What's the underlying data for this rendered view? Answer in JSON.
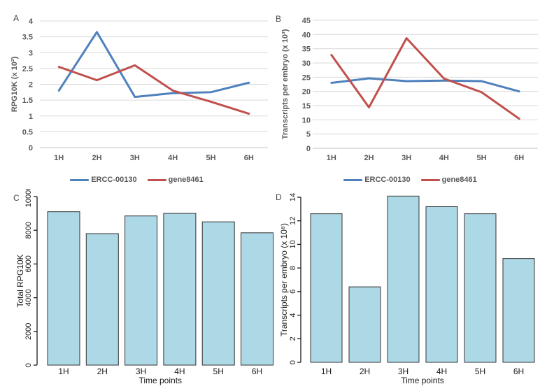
{
  "chart_data": [
    {
      "panel": "A",
      "type": "line",
      "x_categories": [
        "1H",
        "2H",
        "3H",
        "4H",
        "5H",
        "6H"
      ],
      "series": [
        {
          "name": "ERCC-00130",
          "color": "#4F81BD",
          "values": [
            1.8,
            3.65,
            1.6,
            1.72,
            1.75,
            2.05
          ]
        },
        {
          "name": "gene8461",
          "color": "#C0504D",
          "values": [
            2.55,
            2.13,
            2.6,
            1.8,
            1.45,
            1.07
          ]
        }
      ],
      "ylabel": "RPG10K (x 10²)",
      "xlabel": "",
      "ylim": [
        0,
        4
      ],
      "ytick_step": 0.5,
      "grid": true,
      "legend_position": "bottom",
      "gridline_color": "#d9d9d9",
      "axis_line_color": "#c3c3c3",
      "tick_text_color": "#595959"
    },
    {
      "panel": "B",
      "type": "line",
      "x_categories": [
        "1H",
        "2H",
        "3H",
        "4H",
        "5H",
        "6H"
      ],
      "series": [
        {
          "name": "ERCC-00130",
          "color": "#4F81BD",
          "values": [
            23,
            24.6,
            23.6,
            23.8,
            23.6,
            20
          ]
        },
        {
          "name": "gene8461",
          "color": "#C0504D",
          "values": [
            32.8,
            14.4,
            38.7,
            24.5,
            19.7,
            10.4
          ]
        }
      ],
      "ylabel": "Transcripts per embryo (x 10³)",
      "xlabel": "",
      "ylim": [
        0,
        45
      ],
      "ytick_step": 5,
      "grid": true,
      "legend_position": "bottom",
      "gridline_color": "#d9d9d9",
      "axis_line_color": "#c3c3c3",
      "tick_text_color": "#595959"
    },
    {
      "panel": "C",
      "type": "bar",
      "categories": [
        "1H",
        "2H",
        "3H",
        "4H",
        "5H",
        "6H"
      ],
      "values": [
        9100,
        7800,
        8850,
        9000,
        8500,
        7850
      ],
      "ylabel": "Total RPG10K",
      "xlabel": "Time points",
      "ylim": [
        0,
        10000
      ],
      "ytick_step": 2000,
      "grid": false,
      "bar_fill": "#ADD8E6",
      "bar_border": "#333333",
      "axis_color": "#1a1a1a",
      "tick_text_color": "#1a1a1a"
    },
    {
      "panel": "D",
      "type": "bar",
      "categories": [
        "1H",
        "2H",
        "3H",
        "4H",
        "5H",
        "6H"
      ],
      "values": [
        12.6,
        6.4,
        14.1,
        13.2,
        12.6,
        8.8
      ],
      "ylabel": "Transcripts per embryo (x 10⁸)",
      "xlabel": "Time points",
      "ylim": [
        0,
        14
      ],
      "ytick_step": 2,
      "grid": false,
      "bar_fill": "#ADD8E6",
      "bar_border": "#333333",
      "axis_color": "#1a1a1a",
      "tick_text_color": "#1a1a1a"
    }
  ]
}
